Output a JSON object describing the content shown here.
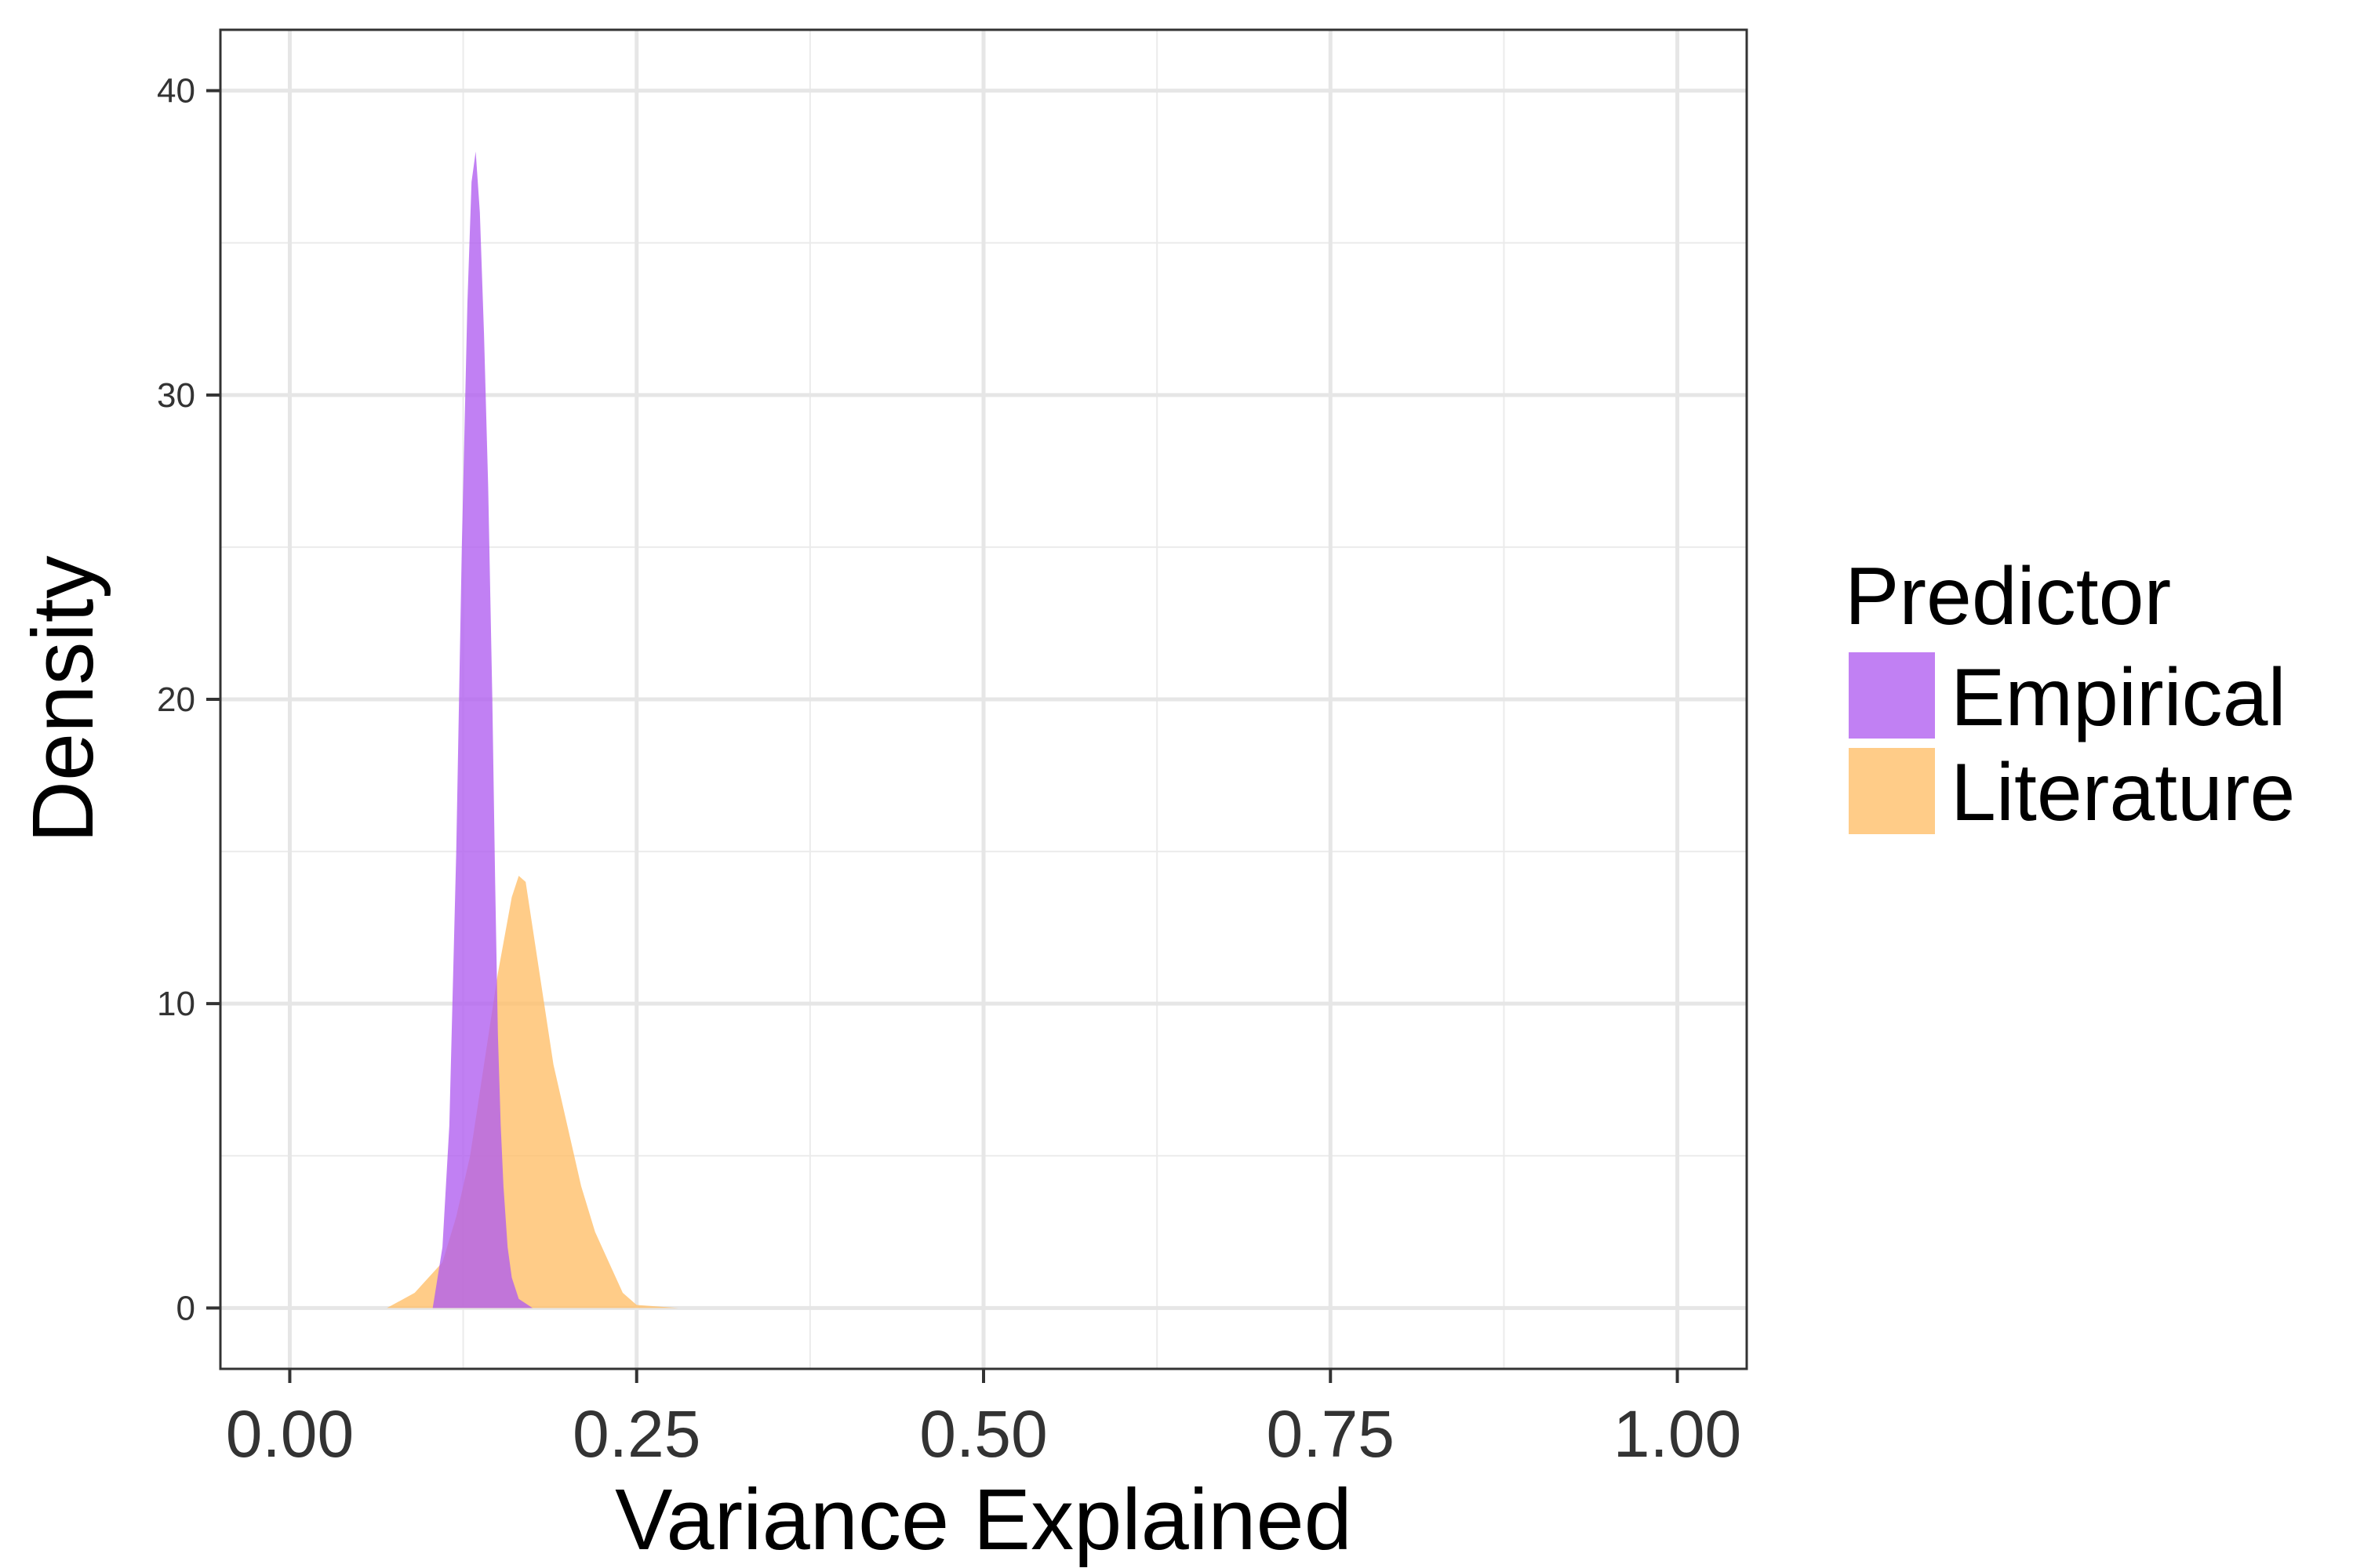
{
  "chart_data": {
    "type": "area",
    "title": "",
    "xlabel": "Variance Explained",
    "ylabel": "Density",
    "xlim": [
      -0.05,
      1.05
    ],
    "ylim": [
      -2,
      42
    ],
    "x_ticks": [
      0.0,
      0.25,
      0.5,
      0.75,
      1.0
    ],
    "x_tick_labels": [
      "0.00",
      "0.25",
      "0.50",
      "0.75",
      "1.00"
    ],
    "y_ticks": [
      0,
      10,
      20,
      30,
      40
    ],
    "y_tick_labels": [
      "0",
      "10",
      "20",
      "30",
      "40"
    ],
    "grid": true,
    "legend": {
      "title": "Predictor",
      "placement": "right"
    },
    "series": [
      {
        "name": "Empirical",
        "color": "#b05cf0",
        "x": [
          0.103,
          0.11,
          0.115,
          0.12,
          0.124,
          0.128,
          0.131,
          0.134,
          0.137,
          0.14,
          0.143,
          0.146,
          0.148,
          0.15,
          0.152,
          0.154,
          0.157,
          0.16,
          0.165,
          0.175
        ],
        "y": [
          0,
          2,
          6,
          15,
          25,
          33,
          37,
          38,
          36,
          32,
          27,
          20,
          14,
          9,
          6,
          4,
          2,
          1,
          0.3,
          0
        ]
      },
      {
        "name": "Literature",
        "color": "#ffbe66",
        "x": [
          0.07,
          0.09,
          0.1,
          0.11,
          0.12,
          0.13,
          0.14,
          0.15,
          0.16,
          0.165,
          0.17,
          0.18,
          0.19,
          0.2,
          0.21,
          0.22,
          0.23,
          0.24,
          0.25,
          0.28
        ],
        "y": [
          0,
          0.5,
          1,
          1.5,
          3,
          5,
          8,
          11,
          13.5,
          14.2,
          14,
          11,
          8,
          6,
          4,
          2.5,
          1.5,
          0.5,
          0.1,
          0
        ]
      }
    ]
  }
}
